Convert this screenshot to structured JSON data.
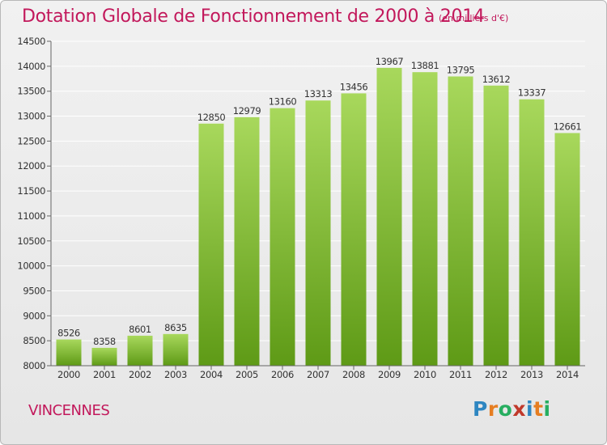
{
  "header": {
    "title": "Dotation Globale de Fonctionnement de 2000 à 2014",
    "unit": "(en milliers d'€)"
  },
  "footer": {
    "commune": "VINCENNES",
    "brand": {
      "letters": [
        "P",
        "r",
        "o",
        "x",
        "i",
        "t",
        "i"
      ],
      "colors": [
        "#2e86c1",
        "#e67e22",
        "#27ae60",
        "#c0392b",
        "#2e86c1",
        "#e67e22",
        "#27ae60"
      ]
    }
  },
  "colors": {
    "bar_light": "#a8d85c",
    "bar_dark": "#5e9a16",
    "grid": "#ffffff",
    "text": "#333333",
    "accent": "#c2185b"
  },
  "chart_data": {
    "type": "bar",
    "title": "Dotation Globale de Fonctionnement de 2000 à 2014",
    "subtitle": "(en milliers d'€)",
    "xlabel": "",
    "ylabel": "",
    "categories": [
      "2000",
      "2001",
      "2002",
      "2003",
      "2004",
      "2005",
      "2006",
      "2007",
      "2008",
      "2009",
      "2010",
      "2011",
      "2012",
      "2013",
      "2014"
    ],
    "values": [
      8526,
      8358,
      8601,
      8635,
      12850,
      12979,
      13160,
      13313,
      13456,
      13967,
      13881,
      13795,
      13612,
      13337,
      12661
    ],
    "data_labels": [
      "8526",
      "8358",
      "8601",
      "8635",
      "12850",
      "12979",
      "13160",
      "13313",
      "13456",
      "13967",
      "13881",
      "13795",
      "13612",
      "13337",
      "12661"
    ],
    "ylim": [
      8000,
      14500
    ],
    "yticks": [
      8000,
      8500,
      9000,
      9500,
      10000,
      10500,
      11000,
      11500,
      12000,
      12500,
      13000,
      13500,
      14000,
      14500
    ],
    "ytick_labels": [
      "8000",
      "8500",
      "9000",
      "9500",
      "10000",
      "10500",
      "11000",
      "11500",
      "12000",
      "12500",
      "13000",
      "13500",
      "14000",
      "14500"
    ],
    "grid": true,
    "legend": "none"
  }
}
